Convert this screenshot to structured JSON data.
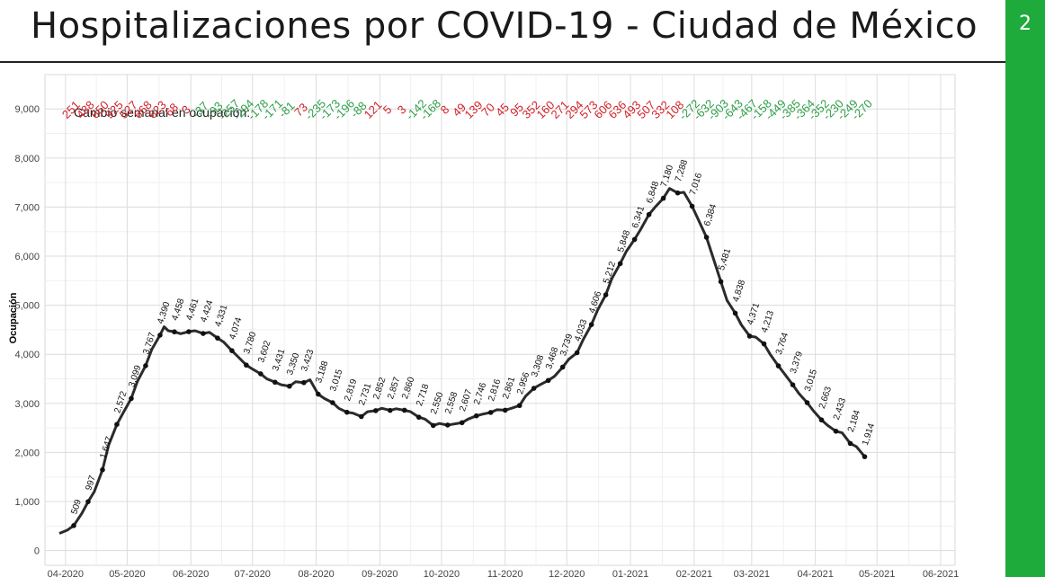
{
  "header": {
    "title": "Hospitalizaciones por COVID-19 - Ciudad de México"
  },
  "side_panel": {
    "page_number": "2",
    "color": "#1faa3c"
  },
  "colors": {
    "increase": "#d21f26",
    "decrease": "#2d9f47",
    "line": "#2b2b2b",
    "points": "#111111"
  },
  "chart_data": {
    "type": "line",
    "title": "",
    "ylabel": "Ocupación",
    "xlabel": "",
    "ylim": [
      -300,
      9700
    ],
    "xlim": [
      "2020-03-22",
      "2021-06-08"
    ],
    "yticks": [
      0,
      1000,
      2000,
      3000,
      4000,
      5000,
      6000,
      7000,
      8000,
      9000
    ],
    "ytick_labels": [
      "0",
      "1,000",
      "2,000",
      "3,000",
      "4,000",
      "5,000",
      "6,000",
      "7,000",
      "8,000",
      "9,000"
    ],
    "xticks": [
      "2020-04-01",
      "2020-05-01",
      "2020-06-01",
      "2020-07-01",
      "2020-08-01",
      "2020-09-01",
      "2020-10-01",
      "2020-11-01",
      "2020-12-01",
      "2021-01-01",
      "2021-02-01",
      "2021-03-01",
      "2021-04-01",
      "2021-05-01",
      "2021-06-01"
    ],
    "xtick_labels": [
      "04-2020",
      "05-2020",
      "06-2020",
      "07-2020",
      "08-2020",
      "09-2020",
      "10-2020",
      "11-2020",
      "12-2020",
      "01-2021",
      "02-2021",
      "03-2021",
      "04-2021",
      "05-2021",
      "06-2021"
    ],
    "grid": true,
    "weekly_change_title": "Cambio semanal en ocupación:",
    "weekly_points": [
      {
        "date": "2020-04-05",
        "value": 509,
        "label": "509",
        "change": "251"
      },
      {
        "date": "2020-04-12",
        "value": 997,
        "label": "997",
        "change": "488"
      },
      {
        "date": "2020-04-19",
        "value": 1647,
        "label": "1,647",
        "change": "650"
      },
      {
        "date": "2020-04-26",
        "value": 2572,
        "label": "2,572",
        "change": "925"
      },
      {
        "date": "2020-05-03",
        "value": 3099,
        "label": "3,099",
        "change": "527"
      },
      {
        "date": "2020-05-10",
        "value": 3767,
        "label": "3,767",
        "change": "668"
      },
      {
        "date": "2020-05-17",
        "value": 4390,
        "label": "4,390",
        "change": "623"
      },
      {
        "date": "2020-05-24",
        "value": 4458,
        "label": "4,458",
        "change": "68"
      },
      {
        "date": "2020-05-31",
        "value": 4461,
        "label": "4,461",
        "change": "3"
      },
      {
        "date": "2020-06-07",
        "value": 4424,
        "label": "4,424",
        "change": "-37"
      },
      {
        "date": "2020-06-14",
        "value": 4331,
        "label": "4,331",
        "change": "-93"
      },
      {
        "date": "2020-06-21",
        "value": 4074,
        "label": "4,074",
        "change": "-257"
      },
      {
        "date": "2020-06-28",
        "value": 3780,
        "label": "3,780",
        "change": "-294"
      },
      {
        "date": "2020-07-05",
        "value": 3602,
        "label": "3,602",
        "change": "-178"
      },
      {
        "date": "2020-07-12",
        "value": 3431,
        "label": "3,431",
        "change": "-171"
      },
      {
        "date": "2020-07-19",
        "value": 3350,
        "label": "3,350",
        "change": "-81"
      },
      {
        "date": "2020-07-26",
        "value": 3423,
        "label": "3,423",
        "change": "73"
      },
      {
        "date": "2020-08-02",
        "value": 3188,
        "label": "3,188",
        "change": "-235"
      },
      {
        "date": "2020-08-09",
        "value": 3015,
        "label": "3,015",
        "change": "-173"
      },
      {
        "date": "2020-08-16",
        "value": 2819,
        "label": "2,819",
        "change": "-196"
      },
      {
        "date": "2020-08-23",
        "value": 2731,
        "label": "2,731",
        "change": "-88"
      },
      {
        "date": "2020-08-30",
        "value": 2852,
        "label": "2,852",
        "change": "121"
      },
      {
        "date": "2020-09-06",
        "value": 2857,
        "label": "2,857",
        "change": "5"
      },
      {
        "date": "2020-09-13",
        "value": 2860,
        "label": "2,860",
        "change": "3"
      },
      {
        "date": "2020-09-20",
        "value": 2718,
        "label": "2,718",
        "change": "-142"
      },
      {
        "date": "2020-09-27",
        "value": 2550,
        "label": "2,550",
        "change": "-168"
      },
      {
        "date": "2020-10-04",
        "value": 2558,
        "label": "2,558",
        "change": "8"
      },
      {
        "date": "2020-10-11",
        "value": 2607,
        "label": "2,607",
        "change": "49"
      },
      {
        "date": "2020-10-18",
        "value": 2746,
        "label": "2,746",
        "change": "139"
      },
      {
        "date": "2020-10-25",
        "value": 2816,
        "label": "2,816",
        "change": "70"
      },
      {
        "date": "2020-11-01",
        "value": 2861,
        "label": "2,861",
        "change": "45"
      },
      {
        "date": "2020-11-08",
        "value": 2956,
        "label": "2,956",
        "change": "95"
      },
      {
        "date": "2020-11-15",
        "value": 3308,
        "label": "3,308",
        "change": "352"
      },
      {
        "date": "2020-11-22",
        "value": 3468,
        "label": "3,468",
        "change": "160"
      },
      {
        "date": "2020-11-29",
        "value": 3739,
        "label": "3,739",
        "change": "271"
      },
      {
        "date": "2020-12-06",
        "value": 4033,
        "label": "4,033",
        "change": "294"
      },
      {
        "date": "2020-12-13",
        "value": 4606,
        "label": "4,606",
        "change": "573"
      },
      {
        "date": "2020-12-20",
        "value": 5212,
        "label": "5,212",
        "change": "606"
      },
      {
        "date": "2020-12-27",
        "value": 5848,
        "label": "5,848",
        "change": "636"
      },
      {
        "date": "2021-01-03",
        "value": 6341,
        "label": "6,341",
        "change": "493"
      },
      {
        "date": "2021-01-10",
        "value": 6848,
        "label": "6,848",
        "change": "507"
      },
      {
        "date": "2021-01-17",
        "value": 7180,
        "label": "7,180",
        "change": "332"
      },
      {
        "date": "2021-01-24",
        "value": 7288,
        "label": "7,288",
        "change": "108"
      },
      {
        "date": "2021-01-31",
        "value": 7016,
        "label": "7,016",
        "change": "-272"
      },
      {
        "date": "2021-02-07",
        "value": 6384,
        "label": "6,384",
        "change": "-632"
      },
      {
        "date": "2021-02-14",
        "value": 5481,
        "label": "5,481",
        "change": "-903"
      },
      {
        "date": "2021-02-21",
        "value": 4838,
        "label": "4,838",
        "change": "-643"
      },
      {
        "date": "2021-02-28",
        "value": 4371,
        "label": "4,371",
        "change": "-467"
      },
      {
        "date": "2021-03-07",
        "value": 4213,
        "label": "4,213",
        "change": "-158"
      },
      {
        "date": "2021-03-14",
        "value": 3764,
        "label": "3,764",
        "change": "-449"
      },
      {
        "date": "2021-03-21",
        "value": 3379,
        "label": "3,379",
        "change": "-385"
      },
      {
        "date": "2021-03-28",
        "value": 3015,
        "label": "3,015",
        "change": "-364"
      },
      {
        "date": "2021-04-04",
        "value": 2663,
        "label": "2,663",
        "change": "-352"
      },
      {
        "date": "2021-04-11",
        "value": 2433,
        "label": "2,433",
        "change": "-230"
      },
      {
        "date": "2021-04-18",
        "value": 2184,
        "label": "2,184",
        "change": "-249"
      },
      {
        "date": "2021-04-25",
        "value": 1914,
        "label": "1,914",
        "change": "-270"
      }
    ],
    "daily_line": [
      [
        "2020-03-29",
        350
      ],
      [
        "2020-04-02",
        420
      ],
      [
        "2020-04-05",
        509
      ],
      [
        "2020-04-09",
        760
      ],
      [
        "2020-04-12",
        997
      ],
      [
        "2020-04-15",
        1200
      ],
      [
        "2020-04-19",
        1647
      ],
      [
        "2020-04-22",
        2150
      ],
      [
        "2020-04-26",
        2572
      ],
      [
        "2020-04-29",
        2800
      ],
      [
        "2020-05-03",
        3099
      ],
      [
        "2020-05-06",
        3450
      ],
      [
        "2020-05-10",
        3767
      ],
      [
        "2020-05-13",
        4100
      ],
      [
        "2020-05-17",
        4390
      ],
      [
        "2020-05-19",
        4560
      ],
      [
        "2020-05-21",
        4480
      ],
      [
        "2020-05-24",
        4458
      ],
      [
        "2020-05-27",
        4420
      ],
      [
        "2020-05-31",
        4461
      ],
      [
        "2020-06-03",
        4480
      ],
      [
        "2020-06-07",
        4424
      ],
      [
        "2020-06-10",
        4450
      ],
      [
        "2020-06-14",
        4331
      ],
      [
        "2020-06-17",
        4250
      ],
      [
        "2020-06-21",
        4074
      ],
      [
        "2020-06-24",
        3950
      ],
      [
        "2020-06-28",
        3780
      ],
      [
        "2020-07-01",
        3700
      ],
      [
        "2020-07-05",
        3602
      ],
      [
        "2020-07-08",
        3500
      ],
      [
        "2020-07-12",
        3431
      ],
      [
        "2020-07-15",
        3380
      ],
      [
        "2020-07-19",
        3350
      ],
      [
        "2020-07-22",
        3440
      ],
      [
        "2020-07-26",
        3423
      ],
      [
        "2020-07-29",
        3480
      ],
      [
        "2020-08-02",
        3188
      ],
      [
        "2020-08-05",
        3100
      ],
      [
        "2020-08-09",
        3015
      ],
      [
        "2020-08-12",
        2900
      ],
      [
        "2020-08-16",
        2819
      ],
      [
        "2020-08-19",
        2800
      ],
      [
        "2020-08-23",
        2731
      ],
      [
        "2020-08-26",
        2830
      ],
      [
        "2020-08-30",
        2852
      ],
      [
        "2020-09-02",
        2900
      ],
      [
        "2020-09-06",
        2857
      ],
      [
        "2020-09-09",
        2890
      ],
      [
        "2020-09-13",
        2860
      ],
      [
        "2020-09-16",
        2830
      ],
      [
        "2020-09-20",
        2718
      ],
      [
        "2020-09-23",
        2680
      ],
      [
        "2020-09-27",
        2550
      ],
      [
        "2020-09-30",
        2590
      ],
      [
        "2020-10-04",
        2558
      ],
      [
        "2020-10-07",
        2580
      ],
      [
        "2020-10-11",
        2607
      ],
      [
        "2020-10-14",
        2680
      ],
      [
        "2020-10-18",
        2746
      ],
      [
        "2020-10-21",
        2780
      ],
      [
        "2020-10-25",
        2816
      ],
      [
        "2020-10-28",
        2870
      ],
      [
        "2020-11-01",
        2861
      ],
      [
        "2020-11-04",
        2900
      ],
      [
        "2020-11-08",
        2956
      ],
      [
        "2020-11-11",
        3150
      ],
      [
        "2020-11-15",
        3308
      ],
      [
        "2020-11-18",
        3380
      ],
      [
        "2020-11-22",
        3468
      ],
      [
        "2020-11-25",
        3550
      ],
      [
        "2020-11-29",
        3739
      ],
      [
        "2020-12-02",
        3900
      ],
      [
        "2020-12-06",
        4033
      ],
      [
        "2020-12-09",
        4300
      ],
      [
        "2020-12-13",
        4606
      ],
      [
        "2020-12-16",
        4900
      ],
      [
        "2020-12-20",
        5212
      ],
      [
        "2020-12-23",
        5550
      ],
      [
        "2020-12-27",
        5848
      ],
      [
        "2020-12-30",
        6100
      ],
      [
        "2021-01-03",
        6341
      ],
      [
        "2021-01-06",
        6550
      ],
      [
        "2021-01-10",
        6848
      ],
      [
        "2021-01-13",
        7000
      ],
      [
        "2021-01-17",
        7180
      ],
      [
        "2021-01-20",
        7380
      ],
      [
        "2021-01-24",
        7288
      ],
      [
        "2021-01-27",
        7300
      ],
      [
        "2021-01-31",
        7016
      ],
      [
        "2021-02-03",
        6750
      ],
      [
        "2021-02-07",
        6384
      ],
      [
        "2021-02-10",
        6000
      ],
      [
        "2021-02-14",
        5481
      ],
      [
        "2021-02-17",
        5100
      ],
      [
        "2021-02-21",
        4838
      ],
      [
        "2021-02-24",
        4600
      ],
      [
        "2021-02-28",
        4371
      ],
      [
        "2021-03-03",
        4350
      ],
      [
        "2021-03-07",
        4213
      ],
      [
        "2021-03-10",
        4000
      ],
      [
        "2021-03-14",
        3764
      ],
      [
        "2021-03-17",
        3600
      ],
      [
        "2021-03-21",
        3379
      ],
      [
        "2021-03-24",
        3200
      ],
      [
        "2021-03-28",
        3015
      ],
      [
        "2021-03-31",
        2850
      ],
      [
        "2021-04-04",
        2663
      ],
      [
        "2021-04-07",
        2550
      ],
      [
        "2021-04-11",
        2433
      ],
      [
        "2021-04-14",
        2400
      ],
      [
        "2021-04-18",
        2184
      ],
      [
        "2021-04-21",
        2120
      ],
      [
        "2021-04-25",
        1914
      ]
    ]
  }
}
